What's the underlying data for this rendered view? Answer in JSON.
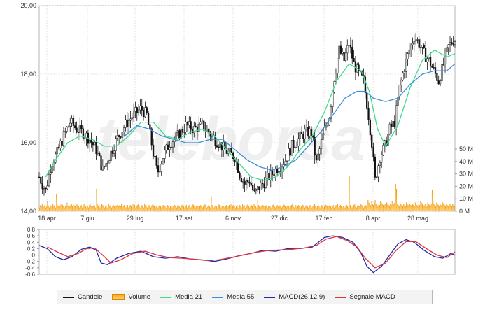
{
  "chart_data": {
    "type": "candlestick",
    "watermark": "teleborsa",
    "x_tick_labels": [
      "18 apr",
      "7 giu",
      "29 lug",
      "17 set",
      "6 nov",
      "27 dic",
      "17 feb",
      "8 apr",
      "28 mag"
    ],
    "price_axis": {
      "ylim": [
        14,
        20
      ],
      "ticks": [
        "20,00",
        "18,00",
        "16,00",
        "14,00"
      ]
    },
    "volume_axis": {
      "ylim": [
        0,
        50
      ],
      "unit": "M",
      "ticks": [
        "50 M",
        "40 M",
        "30 M",
        "20 M",
        "10 M",
        "0 M"
      ]
    },
    "macd_axis": {
      "ylim": [
        -0.6,
        0.8
      ],
      "ticks": [
        "0,8",
        "0,6",
        "0,4",
        "0,2",
        "0",
        "-0,2",
        "-0,4",
        "-0,6"
      ]
    },
    "close_series": [
      [
        0,
        15.0
      ],
      [
        8,
        14.6
      ],
      [
        15,
        15.4
      ],
      [
        22,
        15.7
      ],
      [
        30,
        16.2
      ],
      [
        38,
        16.6
      ],
      [
        46,
        16.4
      ],
      [
        54,
        16.3
      ],
      [
        62,
        16.1
      ],
      [
        70,
        15.8
      ],
      [
        78,
        15.2
      ],
      [
        86,
        15.6
      ],
      [
        95,
        16.1
      ],
      [
        105,
        16.5
      ],
      [
        115,
        16.8
      ],
      [
        125,
        17.0
      ],
      [
        132,
        16.8
      ],
      [
        140,
        15.7
      ],
      [
        145,
        15.1
      ],
      [
        152,
        15.6
      ],
      [
        160,
        16.0
      ],
      [
        170,
        16.2
      ],
      [
        180,
        16.5
      ],
      [
        190,
        16.4
      ],
      [
        200,
        16.5
      ],
      [
        208,
        16.3
      ],
      [
        216,
        16.1
      ],
      [
        224,
        15.9
      ],
      [
        232,
        15.7
      ],
      [
        240,
        15.6
      ],
      [
        246,
        15.1
      ],
      [
        252,
        14.8
      ],
      [
        258,
        14.9
      ],
      [
        264,
        14.5
      ],
      [
        270,
        14.7
      ],
      [
        278,
        14.9
      ],
      [
        286,
        15.1
      ],
      [
        294,
        15.3
      ],
      [
        302,
        15.5
      ],
      [
        310,
        15.9
      ],
      [
        318,
        16.1
      ],
      [
        326,
        16.3
      ],
      [
        334,
        16.3
      ],
      [
        340,
        15.4
      ],
      [
        348,
        16.2
      ],
      [
        356,
        16.8
      ],
      [
        362,
        17.9
      ],
      [
        368,
        18.7
      ],
      [
        374,
        18.4
      ],
      [
        380,
        18.9
      ],
      [
        386,
        18.3
      ],
      [
        392,
        18.0
      ],
      [
        398,
        17.8
      ],
      [
        404,
        16.8
      ],
      [
        408,
        16.0
      ],
      [
        412,
        14.9
      ],
      [
        418,
        15.6
      ],
      [
        424,
        15.9
      ],
      [
        430,
        16.4
      ],
      [
        436,
        16.6
      ],
      [
        442,
        17.6
      ],
      [
        448,
        18.2
      ],
      [
        454,
        18.7
      ],
      [
        460,
        19.1
      ],
      [
        466,
        18.9
      ],
      [
        472,
        18.6
      ],
      [
        478,
        18.4
      ],
      [
        484,
        18.1
      ],
      [
        490,
        17.8
      ],
      [
        496,
        18.3
      ],
      [
        502,
        18.8
      ],
      [
        508,
        19.0
      ]
    ],
    "series": [
      {
        "name": "Media 21",
        "color": "#3fdc8c",
        "values": [
          [
            8,
            15.0
          ],
          [
            20,
            15.5
          ],
          [
            35,
            16.0
          ],
          [
            50,
            16.2
          ],
          [
            65,
            16.1
          ],
          [
            80,
            15.9
          ],
          [
            95,
            15.9
          ],
          [
            110,
            16.2
          ],
          [
            125,
            16.6
          ],
          [
            140,
            16.6
          ],
          [
            155,
            16.2
          ],
          [
            170,
            16.1
          ],
          [
            185,
            16.3
          ],
          [
            200,
            16.4
          ],
          [
            215,
            16.2
          ],
          [
            230,
            15.8
          ],
          [
            245,
            15.4
          ],
          [
            260,
            15.0
          ],
          [
            275,
            14.9
          ],
          [
            290,
            15.0
          ],
          [
            305,
            15.3
          ],
          [
            320,
            15.8
          ],
          [
            335,
            16.2
          ],
          [
            350,
            16.9
          ],
          [
            365,
            17.8
          ],
          [
            380,
            18.3
          ],
          [
            395,
            18.1
          ],
          [
            405,
            17.5
          ],
          [
            415,
            16.4
          ],
          [
            425,
            15.9
          ],
          [
            440,
            16.5
          ],
          [
            455,
            17.6
          ],
          [
            470,
            18.4
          ],
          [
            485,
            18.7
          ],
          [
            500,
            18.5
          ],
          [
            510,
            18.6
          ]
        ]
      },
      {
        "name": "Media 55",
        "color": "#3b8fd9",
        "values": [
          [
            105,
            16.2
          ],
          [
            120,
            16.5
          ],
          [
            135,
            16.4
          ],
          [
            150,
            16.2
          ],
          [
            165,
            16.1
          ],
          [
            180,
            16.0
          ],
          [
            195,
            16.0
          ],
          [
            210,
            16.1
          ],
          [
            225,
            16.1
          ],
          [
            240,
            15.8
          ],
          [
            255,
            15.5
          ],
          [
            270,
            15.3
          ],
          [
            285,
            15.2
          ],
          [
            300,
            15.3
          ],
          [
            315,
            15.5
          ],
          [
            330,
            15.9
          ],
          [
            345,
            16.3
          ],
          [
            360,
            16.8
          ],
          [
            375,
            17.3
          ],
          [
            390,
            17.5
          ],
          [
            400,
            17.5
          ],
          [
            410,
            17.3
          ],
          [
            425,
            17.2
          ],
          [
            440,
            17.3
          ],
          [
            455,
            17.7
          ],
          [
            470,
            18.0
          ],
          [
            485,
            18.1
          ],
          [
            500,
            18.1
          ],
          [
            510,
            18.3
          ]
        ]
      },
      {
        "name": "MACD(26,12,9)",
        "color": "#1a2aa8",
        "values": [
          [
            0,
            0.3
          ],
          [
            10,
            0.2
          ],
          [
            20,
            -0.05
          ],
          [
            30,
            -0.15
          ],
          [
            40,
            -0.05
          ],
          [
            52,
            0.18
          ],
          [
            62,
            0.25
          ],
          [
            70,
            0.15
          ],
          [
            76,
            -0.25
          ],
          [
            84,
            -0.3
          ],
          [
            95,
            -0.1
          ],
          [
            110,
            0.05
          ],
          [
            125,
            0.12
          ],
          [
            140,
            -0.05
          ],
          [
            155,
            -0.1
          ],
          [
            170,
            -0.05
          ],
          [
            185,
            -0.12
          ],
          [
            200,
            -0.15
          ],
          [
            215,
            -0.2
          ],
          [
            230,
            -0.12
          ],
          [
            245,
            -0.02
          ],
          [
            260,
            0.05
          ],
          [
            275,
            0.15
          ],
          [
            290,
            0.12
          ],
          [
            305,
            0.2
          ],
          [
            320,
            0.2
          ],
          [
            335,
            0.25
          ],
          [
            350,
            0.55
          ],
          [
            360,
            0.6
          ],
          [
            372,
            0.55
          ],
          [
            385,
            0.4
          ],
          [
            395,
            0.05
          ],
          [
            402,
            -0.35
          ],
          [
            410,
            -0.55
          ],
          [
            420,
            -0.35
          ],
          [
            430,
            0.0
          ],
          [
            440,
            0.35
          ],
          [
            450,
            0.48
          ],
          [
            460,
            0.4
          ],
          [
            472,
            0.15
          ],
          [
            485,
            -0.05
          ],
          [
            495,
            -0.1
          ],
          [
            505,
            0.05
          ],
          [
            510,
            0.0
          ]
        ]
      },
      {
        "name": "Segnale MACD",
        "color": "#e0323c",
        "values": [
          [
            10,
            0.25
          ],
          [
            22,
            0.1
          ],
          [
            35,
            -0.05
          ],
          [
            48,
            0.05
          ],
          [
            58,
            0.2
          ],
          [
            68,
            0.22
          ],
          [
            78,
            0.0
          ],
          [
            88,
            -0.25
          ],
          [
            100,
            -0.15
          ],
          [
            115,
            0.05
          ],
          [
            130,
            0.12
          ],
          [
            145,
            0.0
          ],
          [
            160,
            -0.08
          ],
          [
            175,
            -0.1
          ],
          [
            190,
            -0.13
          ],
          [
            205,
            -0.17
          ],
          [
            220,
            -0.15
          ],
          [
            235,
            -0.08
          ],
          [
            250,
            0.0
          ],
          [
            265,
            0.08
          ],
          [
            280,
            0.14
          ],
          [
            295,
            0.16
          ],
          [
            310,
            0.18
          ],
          [
            325,
            0.22
          ],
          [
            340,
            0.3
          ],
          [
            352,
            0.5
          ],
          [
            365,
            0.58
          ],
          [
            378,
            0.45
          ],
          [
            390,
            0.25
          ],
          [
            400,
            -0.1
          ],
          [
            412,
            -0.4
          ],
          [
            425,
            -0.25
          ],
          [
            438,
            0.15
          ],
          [
            450,
            0.42
          ],
          [
            462,
            0.42
          ],
          [
            475,
            0.2
          ],
          [
            488,
            0.0
          ],
          [
            500,
            -0.08
          ],
          [
            510,
            0.1
          ]
        ]
      }
    ],
    "volume_bars": [
      3,
      5,
      4,
      6,
      3,
      4,
      5,
      3,
      4,
      8,
      4,
      3,
      5,
      4,
      3,
      6,
      4,
      5,
      3,
      14,
      5,
      4,
      3,
      4,
      6,
      3,
      5,
      4,
      3,
      4,
      5,
      7,
      4,
      3,
      4,
      5,
      6,
      4,
      3,
      5,
      4,
      3,
      6,
      5,
      4,
      3,
      4,
      5,
      3,
      4,
      6,
      5,
      4,
      3,
      4,
      3,
      5,
      6,
      4,
      3,
      4,
      5,
      4,
      3,
      18,
      6,
      4,
      5,
      3,
      4,
      6,
      5,
      4,
      3,
      4,
      5,
      3,
      4,
      6,
      4,
      5,
      3,
      4,
      5,
      4,
      3,
      4,
      5,
      3,
      4,
      5,
      4,
      6,
      3,
      4,
      5,
      4,
      3,
      4,
      5,
      3,
      4,
      5,
      4,
      3,
      6,
      4,
      5,
      3,
      4,
      5,
      6,
      4,
      3,
      4,
      5,
      4,
      3,
      6,
      5,
      4,
      3,
      4,
      5,
      4,
      3,
      4,
      6,
      5,
      4,
      3,
      4,
      5,
      3,
      4,
      5,
      4,
      3,
      4,
      5,
      6,
      4,
      3,
      4,
      5,
      4,
      3,
      4,
      5,
      3,
      4,
      6,
      5,
      4,
      3,
      4,
      5,
      4,
      3,
      4,
      5,
      6,
      4,
      3,
      4,
      5,
      3,
      4,
      5,
      4,
      3,
      4,
      6,
      5,
      4,
      3,
      4,
      5,
      4,
      3,
      4,
      5,
      4,
      3,
      4,
      5,
      6,
      4,
      3,
      4,
      5,
      4,
      3,
      12,
      5,
      4,
      3,
      4,
      5,
      4,
      3,
      6,
      5,
      4,
      3,
      4,
      5,
      4,
      3,
      4,
      5,
      3,
      4,
      5,
      4,
      6,
      3,
      4,
      5,
      4,
      3,
      4,
      5,
      3,
      4,
      5,
      4,
      3,
      6,
      4,
      5,
      3,
      4,
      5,
      6,
      4,
      3,
      4,
      5,
      4,
      3,
      6,
      5,
      4,
      3,
      9,
      5,
      4,
      3,
      4,
      6,
      5,
      4,
      3,
      4,
      5,
      3,
      4,
      5,
      4,
      3,
      4,
      5,
      6,
      4,
      3,
      4,
      5,
      4,
      3,
      4,
      5,
      3,
      4,
      6,
      5,
      4,
      3,
      4,
      5,
      4,
      3,
      4,
      5,
      6,
      4,
      3,
      4,
      5,
      3,
      4,
      5,
      4,
      3,
      4,
      6,
      5,
      4,
      3,
      4,
      5,
      4,
      3,
      4,
      5,
      4,
      3,
      4,
      5,
      6,
      4,
      3,
      4,
      5,
      4,
      3,
      4,
      5,
      4,
      3,
      4,
      6,
      5,
      4,
      3,
      4,
      5,
      4,
      3,
      4,
      5,
      3,
      4,
      5,
      4,
      6,
      3,
      4,
      5,
      4,
      3,
      4,
      5,
      3,
      4,
      5,
      4,
      3,
      28,
      5,
      4,
      3,
      4,
      5,
      6,
      4,
      3,
      4,
      5,
      4,
      3,
      6,
      5,
      4,
      3,
      4,
      5,
      4,
      8,
      9,
      7,
      6,
      5,
      8,
      6,
      5,
      7,
      9,
      6,
      5,
      4,
      6,
      5,
      8,
      7,
      6,
      5,
      4,
      6,
      5,
      7,
      6,
      5,
      4,
      6,
      5,
      8,
      9,
      6,
      7,
      22,
      18,
      6,
      5,
      4,
      7,
      6,
      5,
      4,
      6,
      5,
      4,
      7,
      6,
      5,
      8,
      6,
      5,
      4,
      6,
      5,
      4,
      7,
      6,
      5,
      4,
      6,
      5,
      8,
      7,
      6,
      5,
      4,
      6,
      5,
      4,
      7,
      6,
      5,
      4,
      6,
      17,
      8,
      6,
      5,
      4,
      7,
      6,
      5,
      4,
      6,
      5,
      4,
      7,
      6,
      5,
      4,
      6,
      5,
      4,
      7,
      6,
      5,
      4,
      6,
      5,
      4
    ],
    "legend": [
      {
        "label": "Candele",
        "color": "#111111",
        "kind": "line"
      },
      {
        "label": "Volume",
        "color": "#f5a623",
        "kind": "box"
      },
      {
        "label": "Media 21",
        "color": "#3fdc8c",
        "kind": "line"
      },
      {
        "label": "Media 55",
        "color": "#3b8fd9",
        "kind": "line"
      },
      {
        "label": "MACD(26,12,9)",
        "color": "#1a2aa8",
        "kind": "line"
      },
      {
        "label": "Segnale MACD",
        "color": "#e0323c",
        "kind": "line"
      }
    ]
  }
}
